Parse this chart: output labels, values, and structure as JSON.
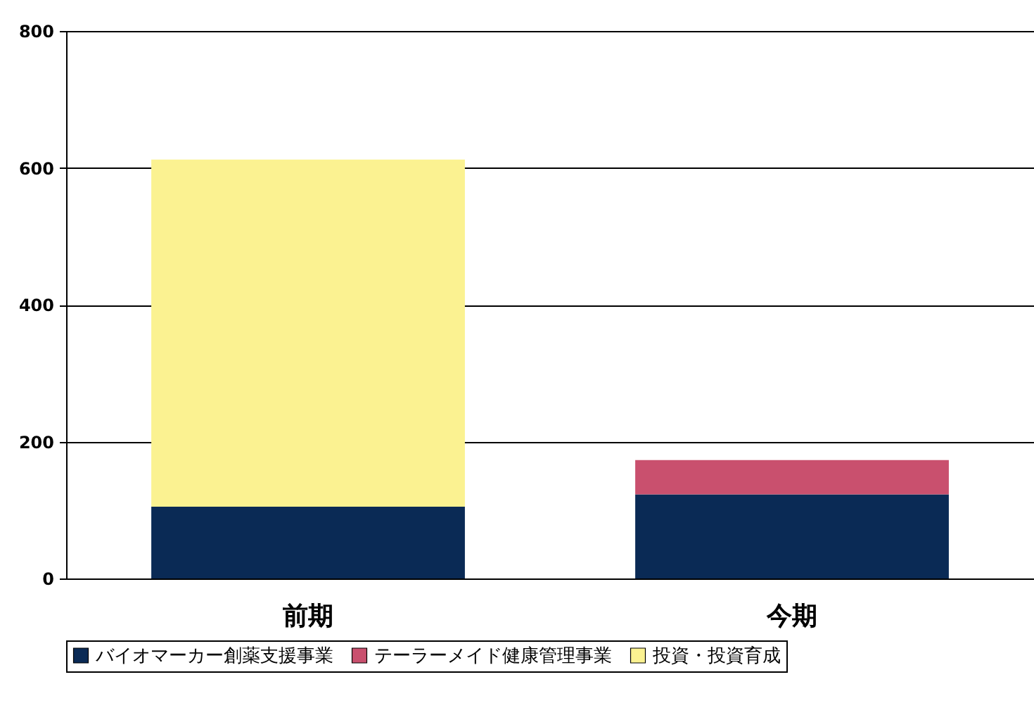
{
  "chart_data": {
    "type": "bar",
    "stacked": true,
    "categories": [
      "前期",
      "今期"
    ],
    "series": [
      {
        "name": "バイオマーカー創薬支援事業",
        "color": "#0a2a55",
        "values": [
          105,
          123
        ]
      },
      {
        "name": "テーラーメイド健康管理事業",
        "color": "#c9506e",
        "values": [
          0,
          50
        ]
      },
      {
        "name": "投資・投資育成",
        "color": "#fbf291",
        "values": [
          507,
          0
        ]
      }
    ],
    "ylim": [
      0,
      800
    ],
    "yticks": [
      0,
      200,
      400,
      600,
      800
    ],
    "grid": "y",
    "legend": "bottom"
  }
}
